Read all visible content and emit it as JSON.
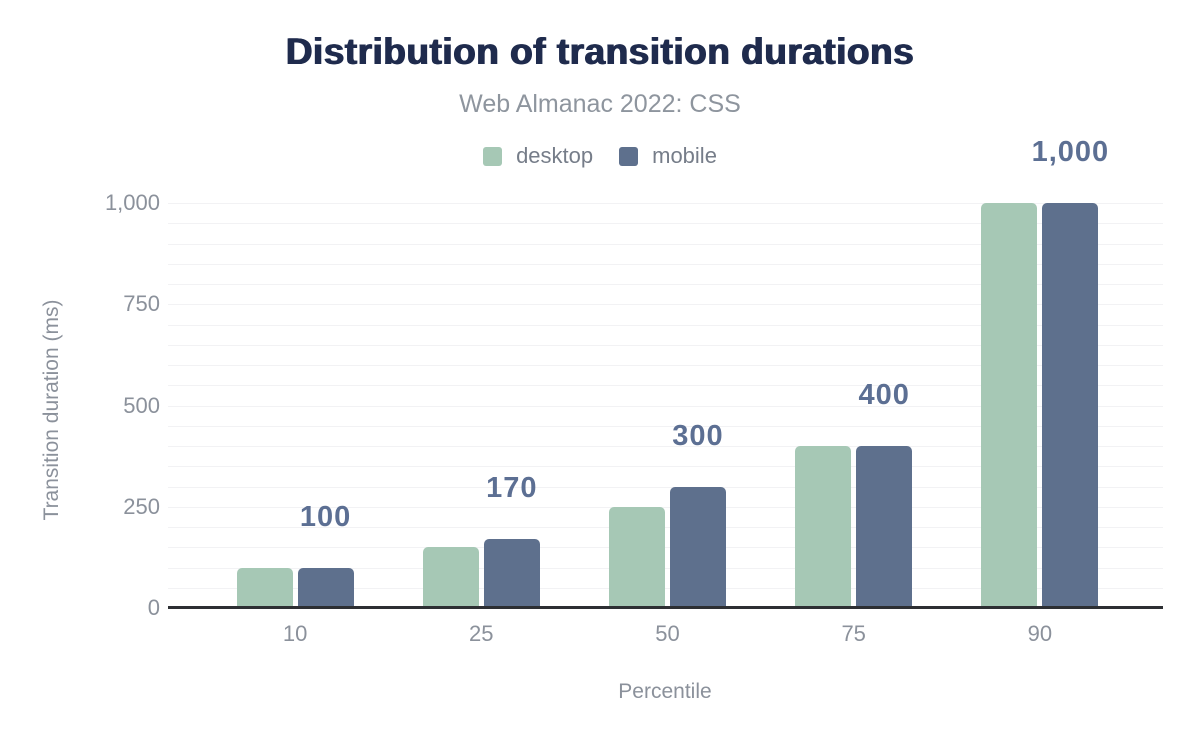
{
  "chart_data": {
    "type": "bar",
    "title": "Distribution of transition durations",
    "subtitle": "Web Almanac 2022: CSS",
    "xlabel": "Percentile",
    "ylabel": "Transition duration (ms)",
    "categories": [
      "10",
      "25",
      "50",
      "75",
      "90"
    ],
    "series": [
      {
        "name": "desktop",
        "color": "#a6c8b5",
        "values": [
          100,
          150,
          250,
          400,
          1000
        ]
      },
      {
        "name": "mobile",
        "color": "#5e708d",
        "values": [
          100,
          170,
          300,
          400,
          1000
        ]
      }
    ],
    "bar_labels": [
      "100",
      "170",
      "300",
      "400",
      "1,000"
    ],
    "y_ticks": [
      {
        "value": 0,
        "label": "0"
      },
      {
        "value": 250,
        "label": "250"
      },
      {
        "value": 500,
        "label": "500"
      },
      {
        "value": 750,
        "label": "750"
      },
      {
        "value": 1000,
        "label": "1,000"
      }
    ],
    "ylim": [
      0,
      1000
    ],
    "minor_grid_step": 50,
    "grid": true,
    "legend_position": "top",
    "colors": {
      "title": "#1f2b4d",
      "subtitle": "#8e959e",
      "axis_text": "#8b919b",
      "legend_text": "#767d89",
      "value_label": "#5c6f93",
      "gridline": "#f2f2f4",
      "axis_line": "#2d2f33",
      "background": "#ffffff"
    }
  }
}
